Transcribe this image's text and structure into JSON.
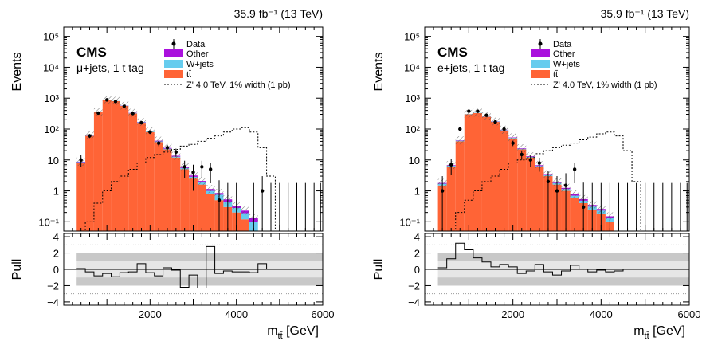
{
  "chart_data": [
    {
      "type": "histogram-with-pull",
      "lumi_label": "35.9 fb⁻¹ (13 TeV)",
      "experiment": "CMS",
      "channel": "μ+jets, 1 t tag",
      "ylabel": "Events",
      "pull_ylabel": "Pull",
      "xlabel": "m",
      "xlabel_sub": "tt̄",
      "xlabel_unit": " [GeV]",
      "log_y": true,
      "ylim": [
        0.05,
        200000
      ],
      "y_tick_labels": [
        "10⁻¹",
        "1",
        "10",
        "10²",
        "10³",
        "10⁴",
        "10⁵"
      ],
      "pull_ylim": [
        -4.4,
        4.4
      ],
      "pull_ticks": [
        "4",
        "2",
        "0",
        "−2",
        "−4"
      ],
      "xlim": [
        0,
        6000
      ],
      "x_tick_labels": [
        "2000",
        "4000",
        "6000"
      ],
      "legend": [
        "Data",
        "Other",
        "W+jets",
        "tt̄",
        "Z' 4.0 TeV, 1% width (1 pb)"
      ],
      "colors": {
        "ttbar": "#ff6436",
        "wjets": "#66ccee",
        "other": "#aa11dd",
        "signal": "#000000",
        "band_inner": "#c8c8c8",
        "band_outer": "#e6e6e6"
      },
      "bin_edges": [
        300,
        500,
        700,
        900,
        1100,
        1300,
        1500,
        1700,
        1900,
        2100,
        2300,
        2500,
        2700,
        2900,
        3100,
        3300,
        3500,
        3700,
        3900,
        4100,
        4300,
        4500,
        4700,
        4900,
        5100,
        5300,
        5500,
        5700,
        5900,
        6000
      ],
      "ttbar": [
        8,
        60,
        350,
        850,
        800,
        560,
        320,
        160,
        80,
        38,
        22,
        12,
        5,
        2.5,
        1.6,
        0.8,
        0.5,
        0.3,
        0.2,
        0.12,
        0.05,
        0,
        0,
        0,
        0,
        0,
        0,
        0,
        0
      ],
      "wjets": [
        0.5,
        1.5,
        5,
        12,
        14,
        12,
        9,
        6,
        4,
        2,
        1.2,
        0.8,
        0.5,
        0.35,
        0.3,
        0.2,
        0.25,
        0.15,
        0.08,
        0.07,
        0.05,
        0,
        0,
        0,
        0,
        0,
        0,
        0,
        0
      ],
      "other": [
        0.3,
        1,
        4,
        8,
        9,
        8,
        6,
        4,
        3,
        2,
        1.3,
        0.9,
        0.5,
        0.3,
        0.2,
        0.15,
        0.1,
        0.08,
        0.05,
        0.04,
        0.03,
        0,
        0,
        0,
        0,
        0,
        0,
        0,
        0
      ],
      "data": [
        10,
        60,
        330,
        880,
        780,
        550,
        320,
        160,
        80,
        35,
        25,
        18,
        6,
        4,
        6,
        5,
        0.5,
        0,
        0,
        0,
        0,
        1,
        0,
        0,
        0,
        0,
        0,
        0,
        0
      ],
      "signal": [
        0,
        0.1,
        0.4,
        1,
        2,
        3,
        5,
        8,
        12,
        15,
        18,
        22,
        28,
        32,
        40,
        50,
        60,
        80,
        100,
        110,
        80,
        25,
        3,
        0,
        0,
        0,
        0,
        0,
        0
      ],
      "pull": [
        0.1,
        -0.3,
        -0.8,
        -0.5,
        -0.9,
        -0.4,
        -0.3,
        0.7,
        -0.4,
        -0.8,
        0.2,
        -0.1,
        -2.2,
        -0.7,
        -2.3,
        2.8,
        -0.5,
        -0.2,
        -0.3,
        -0.3,
        -0.4,
        0.7,
        0,
        0,
        0,
        0,
        0,
        0,
        0
      ]
    },
    {
      "type": "histogram-with-pull",
      "lumi_label": "35.9 fb⁻¹ (13 TeV)",
      "experiment": "CMS",
      "channel": "e+jets, 1 t tag",
      "ylabel": "Events",
      "pull_ylabel": "Pull",
      "xlabel": "m",
      "xlabel_sub": "tt̄",
      "xlabel_unit": " [GeV]",
      "log_y": true,
      "ylim": [
        0.05,
        200000
      ],
      "y_tick_labels": [
        "10⁻¹",
        "1",
        "10",
        "10²",
        "10³",
        "10⁴",
        "10⁵"
      ],
      "pull_ylim": [
        -4.4,
        4.4
      ],
      "pull_ticks": [
        "4",
        "2",
        "0",
        "−2",
        "−4"
      ],
      "xlim": [
        0,
        6000
      ],
      "x_tick_labels": [
        "2000",
        "4000",
        "6000"
      ],
      "legend": [
        "Data",
        "Other",
        "W+jets",
        "tt̄",
        "Z' 4.0 TeV, 1% width (1 pb)"
      ],
      "colors": {
        "ttbar": "#ff6436",
        "wjets": "#66ccee",
        "other": "#aa11dd",
        "signal": "#000000",
        "band_inner": "#c8c8c8",
        "band_outer": "#e6e6e6"
      },
      "bin_edges": [
        300,
        500,
        700,
        900,
        1100,
        1300,
        1500,
        1700,
        1900,
        2100,
        2300,
        2500,
        2700,
        2900,
        3100,
        3300,
        3500,
        3700,
        3900,
        4100,
        4300,
        4500,
        4700,
        4900,
        5100,
        5300,
        5500,
        5700,
        5900,
        6000
      ],
      "ttbar": [
        1.5,
        6,
        40,
        300,
        330,
        250,
        170,
        90,
        50,
        22,
        12,
        6,
        3,
        1.6,
        1,
        0.6,
        0.4,
        0.25,
        0.18,
        0.1,
        0,
        0,
        0,
        0,
        0,
        0,
        0,
        0,
        0
      ],
      "wjets": [
        0.2,
        0.5,
        2,
        6,
        8,
        7,
        5,
        3,
        2,
        1,
        0.6,
        0.4,
        0.25,
        0.2,
        0.15,
        0.1,
        0.08,
        0.06,
        0.05,
        0.03,
        0,
        0,
        0,
        0,
        0,
        0,
        0,
        0,
        0
      ],
      "other": [
        0.1,
        0.3,
        1.2,
        3,
        4,
        3.5,
        2.8,
        2,
        1.5,
        0.9,
        0.6,
        0.4,
        0.25,
        0.15,
        0.1,
        0.08,
        0.06,
        0.04,
        0.03,
        0.02,
        0,
        0,
        0,
        0,
        0,
        0,
        0,
        0,
        0
      ],
      "data": [
        1,
        7,
        100,
        380,
        380,
        280,
        170,
        100,
        35,
        15,
        10,
        8,
        2,
        1,
        1.5,
        5,
        0.3,
        0,
        0,
        0,
        0,
        0,
        0,
        0,
        0,
        0,
        0,
        0,
        0
      ],
      "signal": [
        0,
        0.05,
        0.2,
        0.5,
        1,
        2,
        3,
        5,
        8,
        10,
        12,
        16,
        20,
        25,
        30,
        35,
        45,
        55,
        70,
        80,
        60,
        20,
        2,
        0,
        0,
        0,
        0,
        0,
        0
      ],
      "pull": [
        0.2,
        1.3,
        3.2,
        2.4,
        1.4,
        0.9,
        0.3,
        0.6,
        0.3,
        -0.5,
        -0.2,
        0.6,
        -0.3,
        -0.7,
        -0.2,
        0.5,
        0,
        -0.3,
        -0.1,
        -0.3,
        -0.2,
        0,
        0,
        0,
        0,
        0,
        0,
        0,
        0
      ]
    }
  ]
}
